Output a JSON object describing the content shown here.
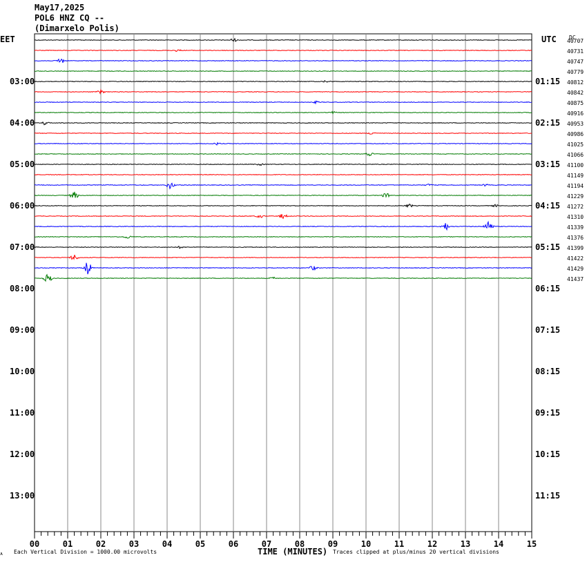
{
  "header": {
    "date": "May17,2025",
    "station": "POL6 HNZ CQ --",
    "location": "(Dimarxelo Polis)"
  },
  "left_timezone": "EET",
  "right_timezone": "UTC",
  "dc_label": "DC",
  "corner_mark": "ᴀ",
  "footer": {
    "scale_note": "Each Vertical Division = 1000.00 microvolts",
    "x_axis_title": "TIME (MINUTES)",
    "clip_note": "Traces clipped at plus/minus 20 vertical divisions"
  },
  "chart_data": {
    "type": "line",
    "title": "POL6 HNZ CQ --",
    "xlabel": "TIME (MINUTES)",
    "x_ticks": [
      "00",
      "01",
      "02",
      "03",
      "04",
      "05",
      "06",
      "07",
      "08",
      "09",
      "10",
      "11",
      "12",
      "13",
      "14",
      "15"
    ],
    "xlim": [
      0,
      15
    ],
    "rows_per_hour": 4,
    "trace_colors": [
      "#000000",
      "#ff0000",
      "#0000ff",
      "#007a00"
    ],
    "left_hour_labels": [
      "03:00",
      "04:00",
      "05:00",
      "06:00",
      "07:00",
      "08:00",
      "09:00",
      "10:00",
      "11:00",
      "12:00",
      "13:00"
    ],
    "right_hour_labels": [
      "01:15",
      "02:15",
      "03:15",
      "04:15",
      "05:15",
      "06:15",
      "07:15",
      "08:15",
      "09:15",
      "10:15",
      "11:15"
    ],
    "traces": [
      {
        "dc": "40707",
        "events": [
          [
            6.0,
            3
          ]
        ]
      },
      {
        "dc": "40731",
        "events": [
          [
            4.3,
            2
          ]
        ]
      },
      {
        "dc": "40747",
        "events": [
          [
            0.8,
            5
          ]
        ]
      },
      {
        "dc": "40779",
        "events": []
      },
      {
        "dc": "40812",
        "events": [
          [
            8.8,
            2
          ]
        ]
      },
      {
        "dc": "40842",
        "events": [
          [
            2.0,
            3
          ]
        ]
      },
      {
        "dc": "40875",
        "events": [
          [
            8.5,
            2
          ]
        ]
      },
      {
        "dc": "40916",
        "events": [
          [
            9.0,
            2
          ]
        ]
      },
      {
        "dc": "40953",
        "events": [
          [
            0.3,
            3
          ]
        ]
      },
      {
        "dc": "40986",
        "events": [
          [
            10.2,
            3
          ]
        ]
      },
      {
        "dc": "41025",
        "events": [
          [
            5.5,
            2
          ]
        ]
      },
      {
        "dc": "41066",
        "events": [
          [
            10.1,
            3
          ]
        ]
      },
      {
        "dc": "41100",
        "events": [
          [
            6.8,
            2
          ]
        ]
      },
      {
        "dc": "41149",
        "events": []
      },
      {
        "dc": "41194",
        "events": [
          [
            4.1,
            6
          ],
          [
            11.9,
            2
          ],
          [
            13.6,
            2
          ]
        ]
      },
      {
        "dc": "41229",
        "events": [
          [
            1.2,
            6
          ],
          [
            10.6,
            4
          ]
        ]
      },
      {
        "dc": "41272",
        "events": [
          [
            11.3,
            3
          ],
          [
            13.9,
            2
          ]
        ]
      },
      {
        "dc": "41310",
        "events": [
          [
            6.8,
            3
          ],
          [
            7.5,
            4
          ]
        ]
      },
      {
        "dc": "41339",
        "events": [
          [
            12.4,
            6
          ],
          [
            13.7,
            10
          ]
        ]
      },
      {
        "dc": "41376",
        "events": [
          [
            2.8,
            3
          ]
        ]
      },
      {
        "dc": "41399",
        "events": [
          [
            4.4,
            2
          ]
        ]
      },
      {
        "dc": "41422",
        "events": [
          [
            1.2,
            5
          ]
        ]
      },
      {
        "dc": "41429",
        "events": [
          [
            1.6,
            10
          ],
          [
            8.4,
            4
          ]
        ]
      },
      {
        "dc": "41437",
        "events": [
          [
            0.4,
            7
          ],
          [
            7.2,
            2
          ]
        ]
      }
    ]
  }
}
